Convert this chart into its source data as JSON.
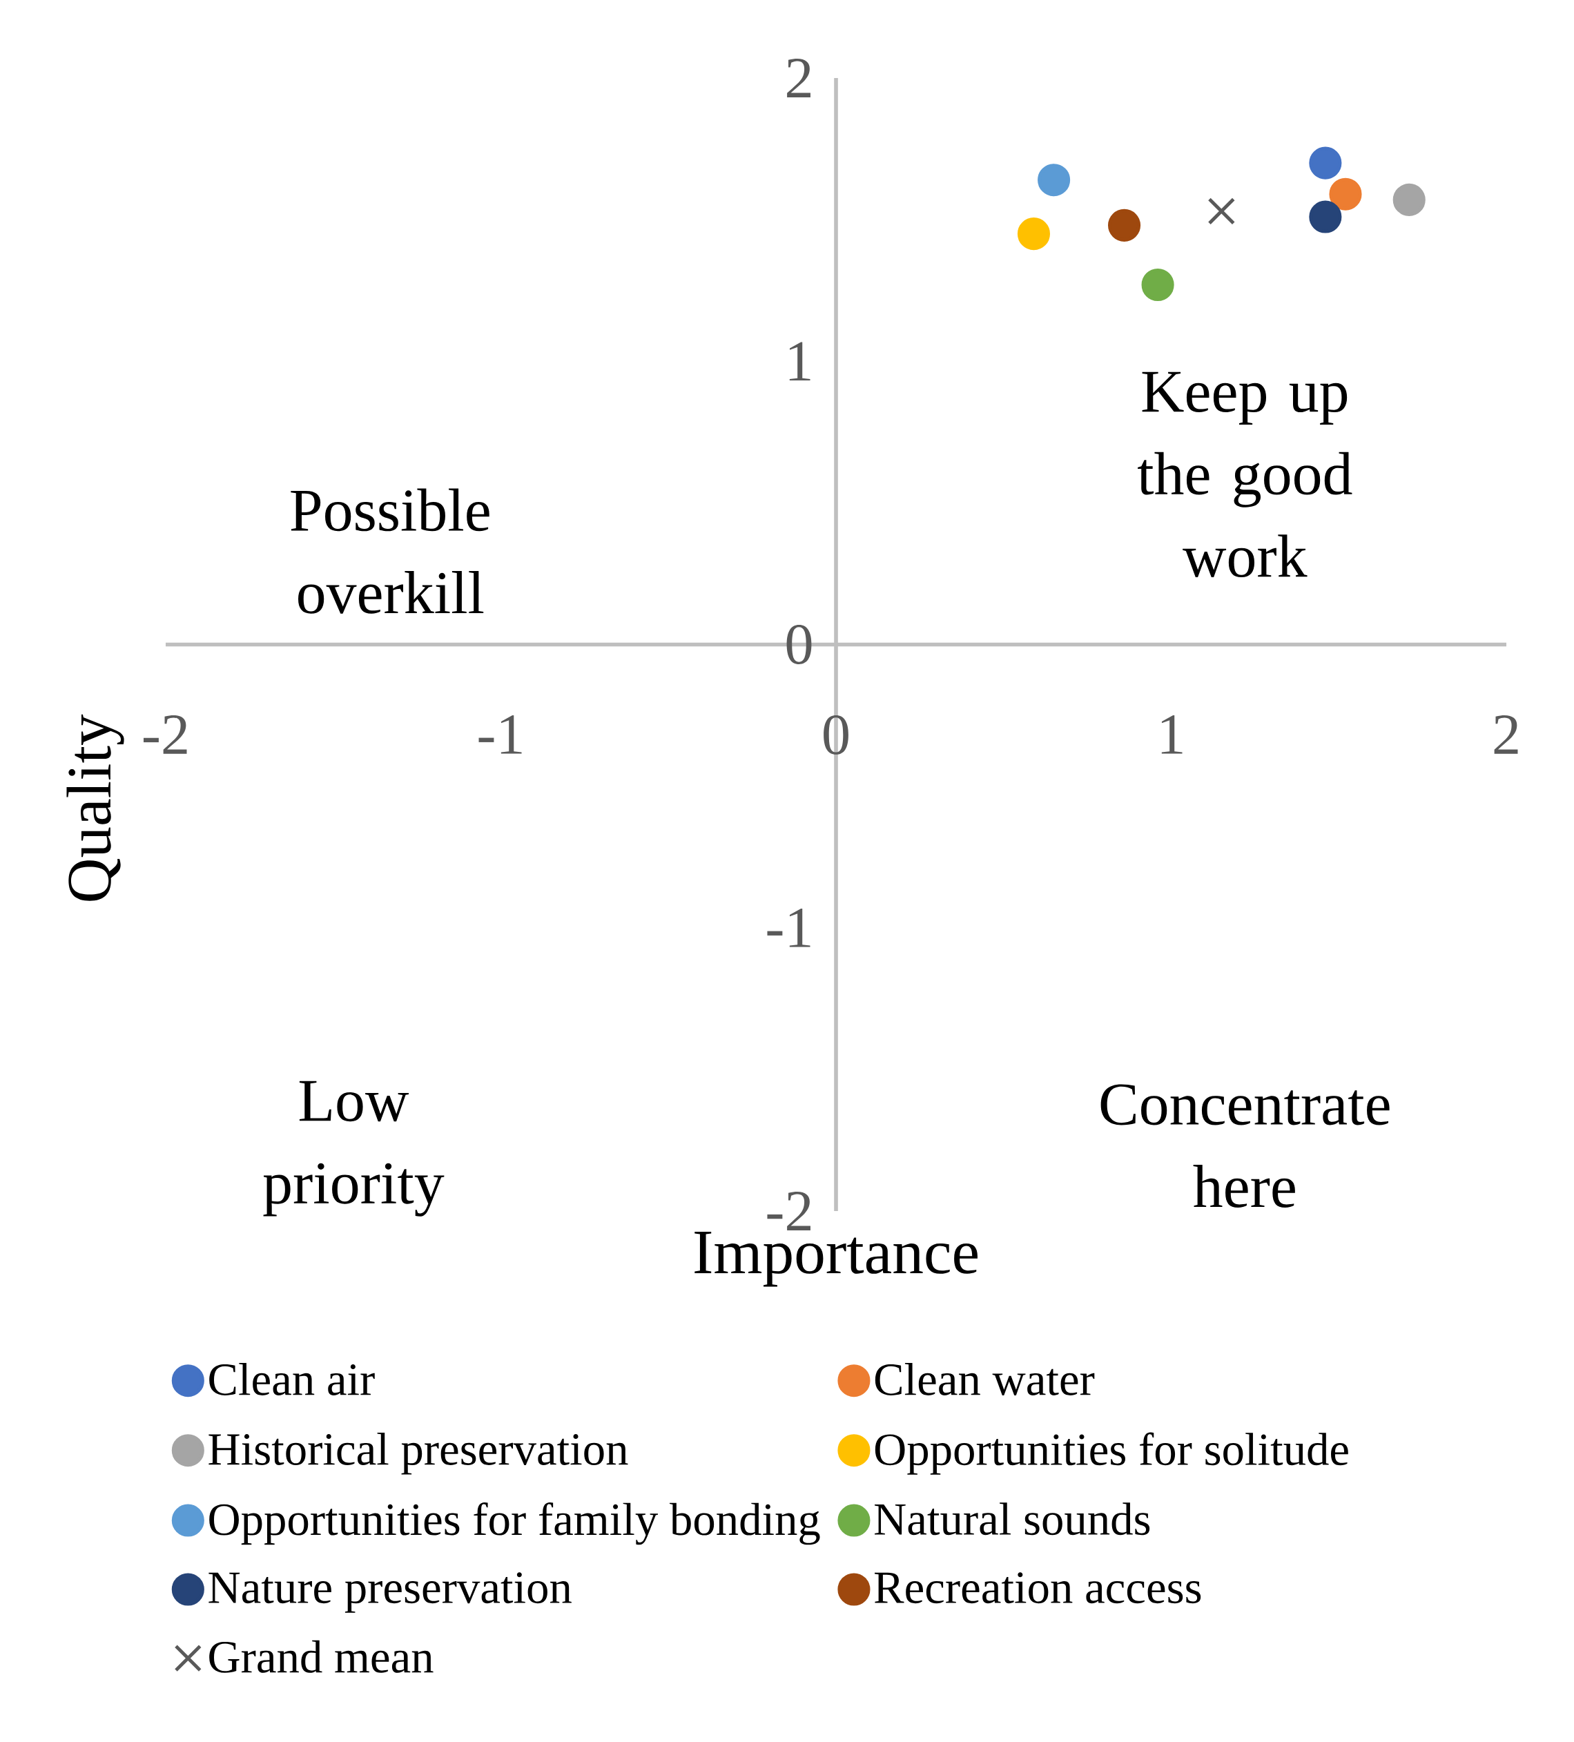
{
  "chart_data": {
    "type": "scatter",
    "xlabel": "Importance",
    "ylabel": "Quality",
    "xlim": [
      -2,
      2
    ],
    "ylim": [
      -2,
      2
    ],
    "xticks": [
      -2,
      -1,
      0,
      1,
      2
    ],
    "yticks": [
      -2,
      -1,
      0,
      1,
      2
    ],
    "grid": false,
    "legend": "bottom",
    "annotations": [
      "Possible overkill",
      "Keep up the good work",
      "Low priority",
      "Concentrate here"
    ],
    "series": [
      {
        "name": "Clean air",
        "color": "#4472c4",
        "marker": "circle",
        "x": [
          1.46
        ],
        "values": [
          1.7
        ]
      },
      {
        "name": "Clean water",
        "color": "#ed7d31",
        "marker": "circle",
        "x": [
          1.52
        ],
        "values": [
          1.59
        ]
      },
      {
        "name": "Historical preservation",
        "color": "#a5a5a5",
        "marker": "circle",
        "x": [
          1.71
        ],
        "values": [
          1.57
        ]
      },
      {
        "name": "Opportunities for solitude",
        "color": "#ffc000",
        "marker": "circle",
        "x": [
          0.59
        ],
        "values": [
          1.45
        ]
      },
      {
        "name": "Opportunities for family bonding",
        "color": "#5b9bd5",
        "marker": "circle",
        "x": [
          0.65
        ],
        "values": [
          1.64
        ]
      },
      {
        "name": "Natural sounds",
        "color": "#70ad47",
        "marker": "circle",
        "x": [
          0.96
        ],
        "values": [
          1.27
        ]
      },
      {
        "name": "Nature preservation",
        "color": "#264478",
        "marker": "circle",
        "x": [
          1.46
        ],
        "values": [
          1.51
        ]
      },
      {
        "name": "Recreation access",
        "color": "#9e480e",
        "marker": "circle",
        "x": [
          0.86
        ],
        "values": [
          1.48
        ]
      },
      {
        "name": "Grand mean",
        "color": "#595959",
        "marker": "cross",
        "x": [
          1.15
        ],
        "values": [
          1.53
        ]
      }
    ]
  }
}
